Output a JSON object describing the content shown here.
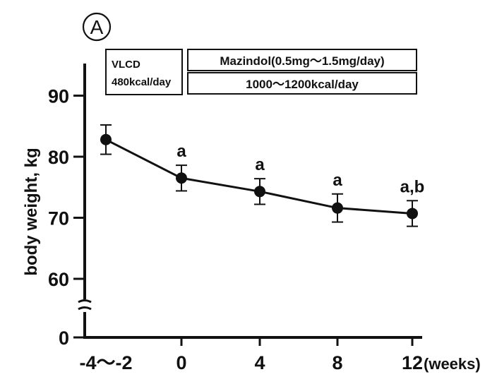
{
  "panel_label": "A",
  "chart_data": {
    "type": "line",
    "title": "",
    "xlabel": "(weeks)",
    "ylabel": "body weight, kg",
    "x": [
      "-4〜-2",
      "0",
      "4",
      "8",
      "12"
    ],
    "x_tick_labels": [
      "-4〜-2",
      "0",
      "4",
      "8",
      "12"
    ],
    "x_unit_label": "(weeks)",
    "y_tick_labels": [
      "0",
      "60",
      "70",
      "80",
      "90"
    ],
    "ylim": [
      55,
      95
    ],
    "axis_break": true,
    "series": [
      {
        "name": "body weight",
        "values": [
          82.8,
          76.5,
          74.3,
          71.6,
          70.7
        ],
        "error_upper": [
          85.2,
          78.6,
          76.4,
          73.9,
          72.8
        ],
        "error_lower": [
          80.4,
          74.4,
          72.2,
          69.3,
          68.6
        ],
        "annotations": [
          "",
          "a",
          "a",
          "a",
          "a,b"
        ]
      }
    ],
    "phase_boxes": {
      "vlcd_title": "VLCD",
      "vlcd_kcal": "480kcal/day",
      "drug": "Mazindol(0.5mg〜1.5mg/day)",
      "diet": "1000〜1200kcal/day"
    }
  }
}
